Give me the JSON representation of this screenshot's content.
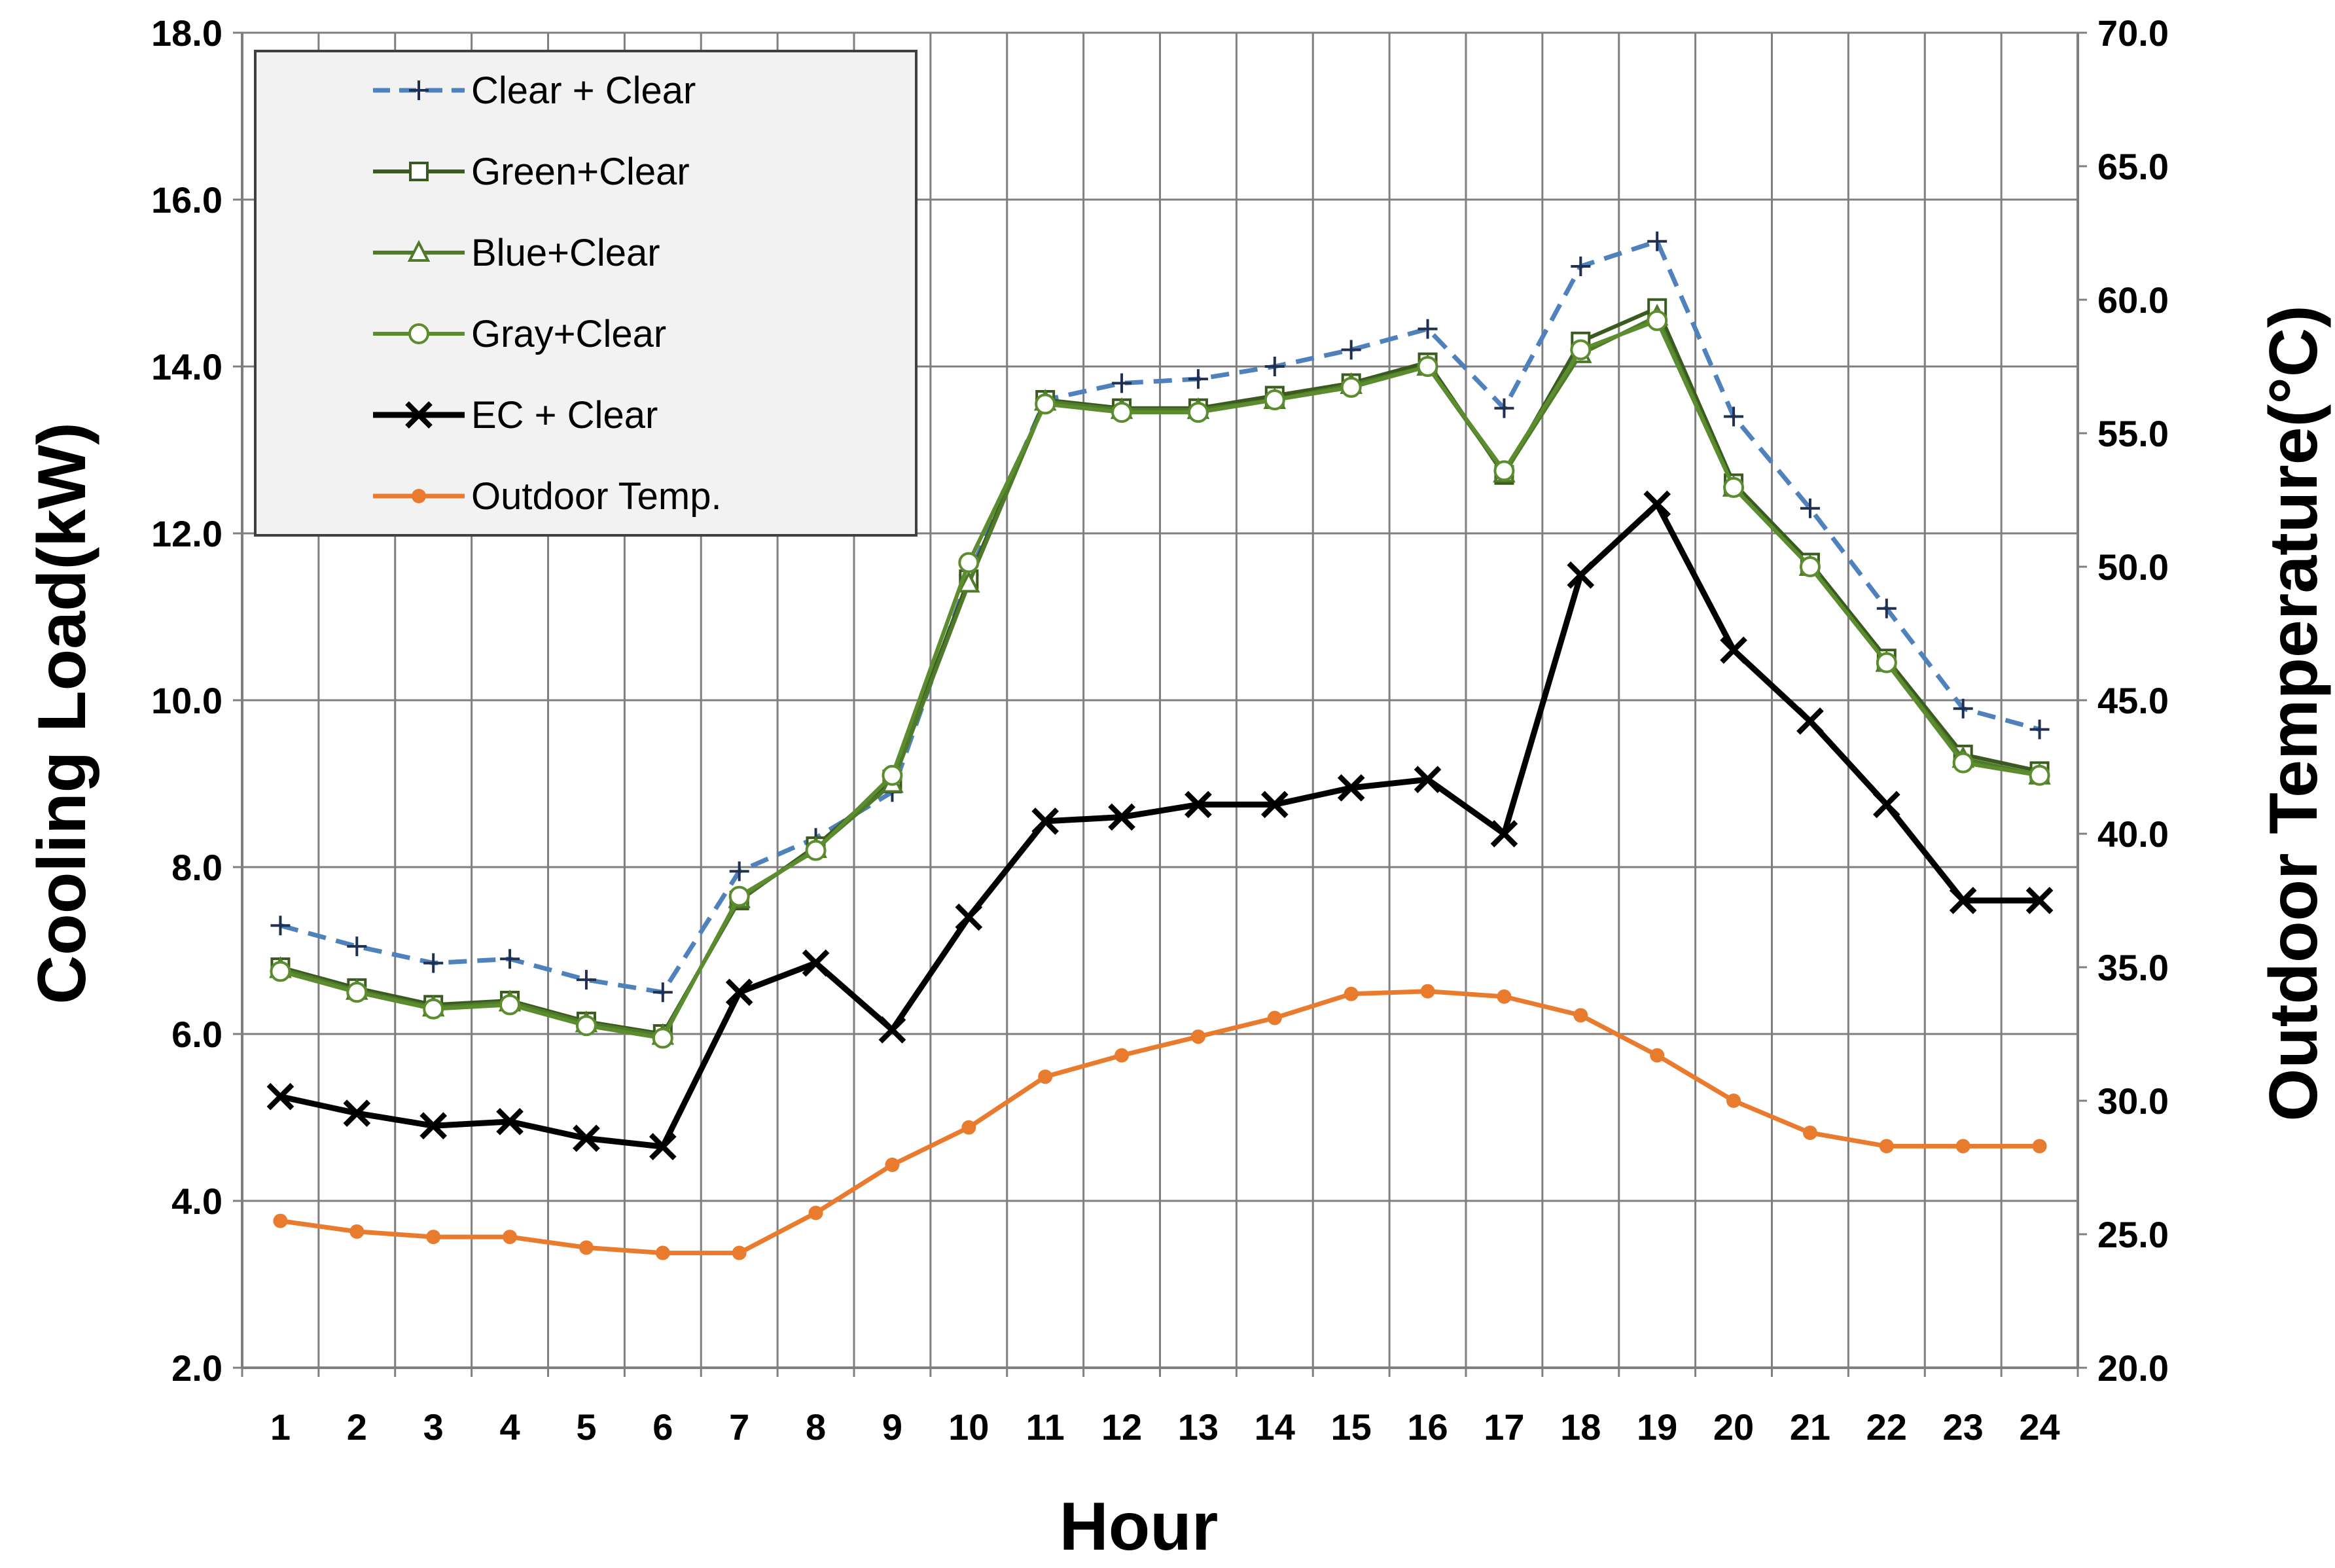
{
  "chart_data": {
    "type": "line",
    "title": "",
    "xlabel": "Hour",
    "ylabel": "Cooling Load(kW)",
    "y2label": "Outdoor Temperature(°C)",
    "categories": [
      "1",
      "2",
      "3",
      "4",
      "5",
      "6",
      "7",
      "8",
      "9",
      "10",
      "11",
      "12",
      "13",
      "14",
      "15",
      "16",
      "17",
      "18",
      "19",
      "20",
      "21",
      "22",
      "23",
      "24"
    ],
    "ylim": [
      2.0,
      18.0
    ],
    "y2lim": [
      20.0,
      70.0
    ],
    "yticks": [
      "2.0",
      "4.0",
      "6.0",
      "8.0",
      "10.0",
      "12.0",
      "14.0",
      "16.0",
      "18.0"
    ],
    "y2ticks": [
      "20.0",
      "25.0",
      "30.0",
      "35.0",
      "40.0",
      "45.0",
      "50.0",
      "55.0",
      "60.0",
      "65.0",
      "70.0"
    ],
    "grid": true,
    "legend_position": "top-left",
    "series": [
      {
        "name": "Clear + Clear",
        "axis": "left",
        "color": "#4f81bd",
        "dash": true,
        "marker": "plus",
        "values": [
          7.3,
          7.05,
          6.85,
          6.9,
          6.65,
          6.5,
          7.95,
          8.35,
          8.9,
          11.5,
          13.6,
          13.8,
          13.85,
          14.0,
          14.2,
          14.45,
          13.5,
          15.2,
          15.5,
          13.4,
          12.3,
          11.1,
          9.9,
          9.65
        ]
      },
      {
        "name": "Green+Clear",
        "axis": "left",
        "color": "#3a5a1f",
        "dash": false,
        "marker": "square",
        "values": [
          6.8,
          6.55,
          6.35,
          6.4,
          6.15,
          6.0,
          7.6,
          8.25,
          9.05,
          11.45,
          13.6,
          13.5,
          13.5,
          13.65,
          13.8,
          14.05,
          12.7,
          14.3,
          14.7,
          12.6,
          11.65,
          10.5,
          9.35,
          9.15
        ]
      },
      {
        "name": "Blue+Clear",
        "axis": "left",
        "color": "#4e7a2a",
        "dash": false,
        "marker": "triangle",
        "values": [
          6.78,
          6.52,
          6.32,
          6.38,
          6.13,
          5.98,
          7.62,
          8.22,
          9.0,
          11.4,
          13.58,
          13.48,
          13.48,
          13.6,
          13.78,
          14.0,
          12.72,
          14.15,
          14.6,
          12.55,
          11.6,
          10.45,
          9.3,
          9.1
        ]
      },
      {
        "name": "Gray+Clear",
        "axis": "left",
        "color": "#5b8c2e",
        "dash": false,
        "marker": "circle",
        "values": [
          6.75,
          6.5,
          6.3,
          6.35,
          6.1,
          5.95,
          7.65,
          8.2,
          9.1,
          11.65,
          13.55,
          13.45,
          13.45,
          13.6,
          13.75,
          14.0,
          12.75,
          14.2,
          14.55,
          12.55,
          11.6,
          10.45,
          9.25,
          9.1
        ]
      },
      {
        "name": "EC + Clear",
        "axis": "left",
        "color": "#000000",
        "dash": false,
        "marker": "x",
        "values": [
          5.25,
          5.05,
          4.9,
          4.95,
          4.75,
          4.65,
          6.5,
          6.85,
          6.05,
          7.4,
          8.55,
          8.6,
          8.75,
          8.75,
          8.95,
          9.05,
          8.4,
          11.5,
          12.35,
          10.6,
          9.75,
          8.75,
          7.6,
          7.6
        ]
      },
      {
        "name": "Outdoor Temp.",
        "axis": "right",
        "color": "#e87b2e",
        "dash": false,
        "marker": "dot",
        "values": [
          25.5,
          25.1,
          24.9,
          24.9,
          24.5,
          24.3,
          24.3,
          25.8,
          27.6,
          29.0,
          30.9,
          31.7,
          32.4,
          33.1,
          34.0,
          34.1,
          33.9,
          33.2,
          31.7,
          30.0,
          28.8,
          28.3,
          28.3,
          28.3
        ]
      }
    ]
  }
}
